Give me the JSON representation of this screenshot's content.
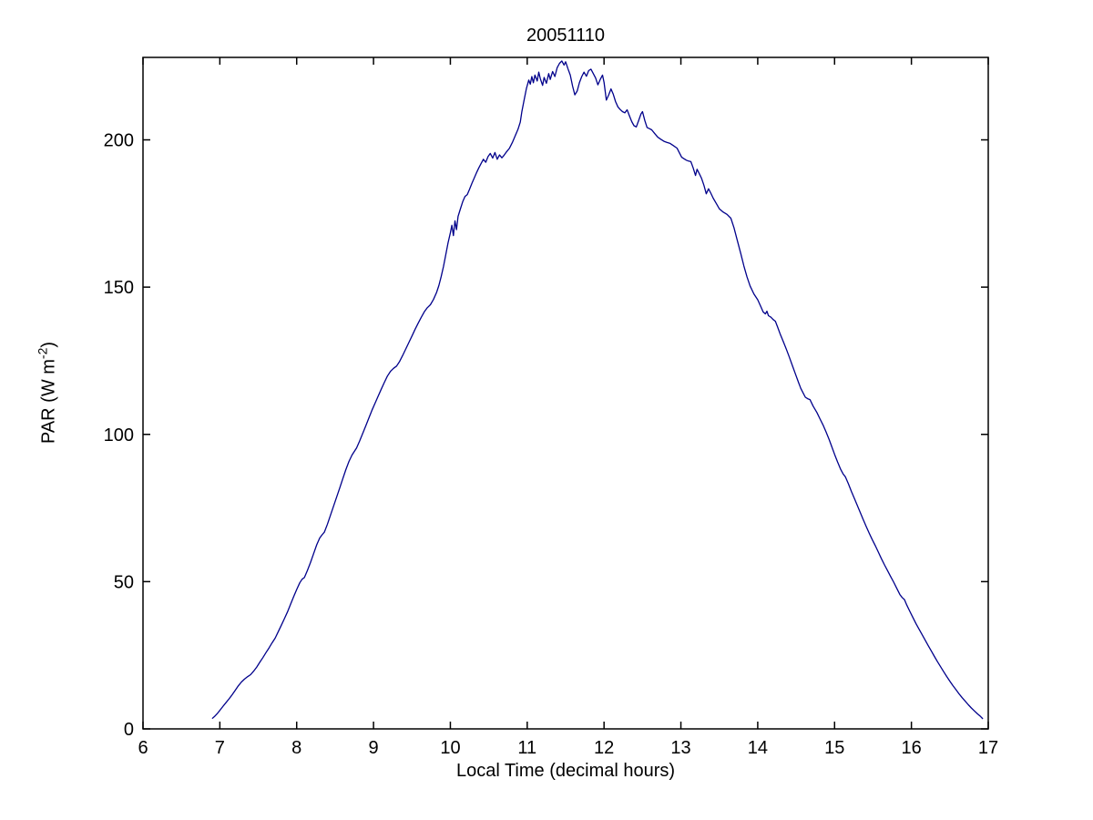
{
  "chart_data": {
    "type": "line",
    "title": "20051110",
    "xlabel": "Local Time (decimal hours)",
    "ylabel": "PAR (W m-2)",
    "ylabel_prefix": "PAR (W m",
    "ylabel_sup": "-2",
    "ylabel_suffix": ")",
    "xlim": [
      6,
      17
    ],
    "ylim": [
      0,
      228
    ],
    "xticks": [
      6,
      7,
      8,
      9,
      10,
      11,
      12,
      13,
      14,
      15,
      16,
      17
    ],
    "yticks": [
      0,
      50,
      100,
      150,
      200
    ],
    "grid": false,
    "legend_position": "none",
    "line_color": "#00008B",
    "axis_color": "#000000",
    "background_color": "#FFFFFF",
    "series": [
      {
        "name": "PAR",
        "points": [
          [
            6.9,
            3.5
          ],
          [
            6.93,
            4.2
          ],
          [
            6.97,
            5.3
          ],
          [
            7.0,
            6.3
          ],
          [
            7.04,
            7.6
          ],
          [
            7.08,
            8.9
          ],
          [
            7.12,
            10.2
          ],
          [
            7.16,
            11.6
          ],
          [
            7.2,
            13.1
          ],
          [
            7.24,
            14.6
          ],
          [
            7.28,
            15.9
          ],
          [
            7.32,
            16.9
          ],
          [
            7.36,
            17.7
          ],
          [
            7.4,
            18.4
          ],
          [
            7.44,
            19.6
          ],
          [
            7.48,
            21.0
          ],
          [
            7.52,
            22.6
          ],
          [
            7.56,
            24.2
          ],
          [
            7.6,
            25.9
          ],
          [
            7.64,
            27.5
          ],
          [
            7.68,
            29.2
          ],
          [
            7.72,
            30.8
          ],
          [
            7.76,
            33.0
          ],
          [
            7.8,
            35.2
          ],
          [
            7.84,
            37.4
          ],
          [
            7.88,
            39.7
          ],
          [
            7.92,
            42.3
          ],
          [
            7.96,
            44.9
          ],
          [
            8.0,
            47.3
          ],
          [
            8.04,
            49.6
          ],
          [
            8.07,
            50.8
          ],
          [
            8.1,
            51.4
          ],
          [
            8.14,
            53.8
          ],
          [
            8.18,
            56.5
          ],
          [
            8.22,
            59.5
          ],
          [
            8.26,
            62.5
          ],
          [
            8.3,
            64.8
          ],
          [
            8.33,
            65.9
          ],
          [
            8.36,
            66.8
          ],
          [
            8.4,
            69.5
          ],
          [
            8.44,
            72.5
          ],
          [
            8.48,
            75.6
          ],
          [
            8.52,
            78.7
          ],
          [
            8.56,
            81.8
          ],
          [
            8.6,
            84.9
          ],
          [
            8.64,
            88.0
          ],
          [
            8.68,
            90.8
          ],
          [
            8.72,
            93.0
          ],
          [
            8.75,
            94.2
          ],
          [
            8.78,
            95.4
          ],
          [
            8.82,
            97.8
          ],
          [
            8.86,
            100.4
          ],
          [
            8.9,
            103.0
          ],
          [
            8.94,
            105.6
          ],
          [
            8.98,
            108.2
          ],
          [
            9.02,
            110.6
          ],
          [
            9.06,
            113.0
          ],
          [
            9.1,
            115.3
          ],
          [
            9.14,
            117.6
          ],
          [
            9.18,
            119.8
          ],
          [
            9.22,
            121.4
          ],
          [
            9.26,
            122.4
          ],
          [
            9.3,
            123.2
          ],
          [
            9.34,
            124.8
          ],
          [
            9.38,
            126.8
          ],
          [
            9.42,
            129.0
          ],
          [
            9.46,
            131.2
          ],
          [
            9.5,
            133.4
          ],
          [
            9.54,
            135.6
          ],
          [
            9.58,
            137.7
          ],
          [
            9.62,
            139.7
          ],
          [
            9.66,
            141.6
          ],
          [
            9.7,
            143.0
          ],
          [
            9.74,
            144.0
          ],
          [
            9.78,
            145.8
          ],
          [
            9.82,
            148.2
          ],
          [
            9.85,
            150.5
          ],
          [
            9.88,
            153.5
          ],
          [
            9.91,
            157.0
          ],
          [
            9.94,
            161.0
          ],
          [
            9.97,
            165.0
          ],
          [
            10.0,
            168.5
          ],
          [
            10.02,
            171.0
          ],
          [
            10.04,
            167.5
          ],
          [
            10.06,
            172.5
          ],
          [
            10.08,
            169.5
          ],
          [
            10.1,
            174.0
          ],
          [
            10.13,
            176.5
          ],
          [
            10.16,
            179.0
          ],
          [
            10.19,
            180.8
          ],
          [
            10.22,
            181.4
          ],
          [
            10.25,
            183.2
          ],
          [
            10.28,
            185.2
          ],
          [
            10.31,
            187.0
          ],
          [
            10.34,
            188.8
          ],
          [
            10.37,
            190.5
          ],
          [
            10.4,
            192.0
          ],
          [
            10.43,
            193.4
          ],
          [
            10.46,
            192.4
          ],
          [
            10.49,
            194.3
          ],
          [
            10.52,
            195.4
          ],
          [
            10.55,
            193.8
          ],
          [
            10.58,
            195.7
          ],
          [
            10.61,
            193.4
          ],
          [
            10.64,
            194.9
          ],
          [
            10.67,
            193.9
          ],
          [
            10.7,
            194.8
          ],
          [
            10.73,
            195.9
          ],
          [
            10.77,
            197.2
          ],
          [
            10.81,
            199.3
          ],
          [
            10.85,
            201.8
          ],
          [
            10.88,
            203.6
          ],
          [
            10.91,
            206.0
          ],
          [
            10.93,
            209.5
          ],
          [
            10.96,
            213.5
          ],
          [
            10.99,
            217.5
          ],
          [
            11.02,
            220.3
          ],
          [
            11.04,
            218.9
          ],
          [
            11.06,
            221.5
          ],
          [
            11.08,
            219.4
          ],
          [
            11.1,
            222.0
          ],
          [
            11.13,
            220.0
          ],
          [
            11.15,
            223.0
          ],
          [
            11.17,
            220.8
          ],
          [
            11.2,
            218.5
          ],
          [
            11.22,
            221.2
          ],
          [
            11.25,
            219.2
          ],
          [
            11.28,
            222.5
          ],
          [
            11.3,
            220.5
          ],
          [
            11.33,
            223.2
          ],
          [
            11.36,
            221.5
          ],
          [
            11.39,
            224.5
          ],
          [
            11.42,
            226.0
          ],
          [
            11.45,
            226.8
          ],
          [
            11.48,
            225.4
          ],
          [
            11.5,
            226.5
          ],
          [
            11.53,
            224.2
          ],
          [
            11.56,
            222.0
          ],
          [
            11.59,
            218.3
          ],
          [
            11.62,
            215.3
          ],
          [
            11.65,
            216.6
          ],
          [
            11.68,
            219.5
          ],
          [
            11.71,
            221.5
          ],
          [
            11.74,
            223.0
          ],
          [
            11.77,
            221.6
          ],
          [
            11.8,
            223.5
          ],
          [
            11.83,
            224.0
          ],
          [
            11.86,
            222.5
          ],
          [
            11.89,
            221.0
          ],
          [
            11.92,
            218.7
          ],
          [
            11.95,
            220.5
          ],
          [
            11.98,
            222.0
          ],
          [
            12.0,
            219.5
          ],
          [
            12.03,
            213.5
          ],
          [
            12.06,
            215.2
          ],
          [
            12.09,
            217.3
          ],
          [
            12.12,
            215.5
          ],
          [
            12.15,
            213.0
          ],
          [
            12.18,
            211.2
          ],
          [
            12.21,
            210.3
          ],
          [
            12.24,
            209.6
          ],
          [
            12.27,
            209.2
          ],
          [
            12.3,
            210.2
          ],
          [
            12.33,
            208.2
          ],
          [
            12.36,
            206.2
          ],
          [
            12.39,
            204.8
          ],
          [
            12.42,
            204.4
          ],
          [
            12.45,
            206.5
          ],
          [
            12.48,
            208.8
          ],
          [
            12.5,
            209.6
          ],
          [
            12.53,
            206.6
          ],
          [
            12.56,
            204.2
          ],
          [
            12.59,
            203.8
          ],
          [
            12.62,
            203.4
          ],
          [
            12.66,
            202.1
          ],
          [
            12.7,
            200.9
          ],
          [
            12.74,
            200.2
          ],
          [
            12.78,
            199.5
          ],
          [
            12.82,
            199.1
          ],
          [
            12.86,
            198.8
          ],
          [
            12.9,
            198.1
          ],
          [
            12.95,
            197.2
          ],
          [
            12.98,
            195.6
          ],
          [
            13.01,
            194.1
          ],
          [
            13.04,
            193.6
          ],
          [
            13.07,
            193.1
          ],
          [
            13.1,
            192.8
          ],
          [
            13.13,
            192.6
          ],
          [
            13.16,
            190.5
          ],
          [
            13.19,
            187.9
          ],
          [
            13.21,
            190.0
          ],
          [
            13.24,
            188.5
          ],
          [
            13.27,
            186.9
          ],
          [
            13.3,
            184.5
          ],
          [
            13.33,
            181.7
          ],
          [
            13.36,
            183.4
          ],
          [
            13.39,
            181.9
          ],
          [
            13.42,
            180.2
          ],
          [
            13.46,
            178.4
          ],
          [
            13.5,
            176.6
          ],
          [
            13.55,
            175.5
          ],
          [
            13.6,
            174.7
          ],
          [
            13.65,
            173.4
          ],
          [
            13.69,
            170.2
          ],
          [
            13.73,
            166.3
          ],
          [
            13.78,
            161.4
          ],
          [
            13.82,
            157.2
          ],
          [
            13.86,
            153.5
          ],
          [
            13.9,
            150.4
          ],
          [
            13.95,
            147.7
          ],
          [
            14.0,
            145.7
          ],
          [
            14.04,
            143.4
          ],
          [
            14.07,
            141.6
          ],
          [
            14.1,
            140.9
          ],
          [
            14.12,
            141.8
          ],
          [
            14.14,
            140.3
          ],
          [
            14.17,
            139.8
          ],
          [
            14.2,
            139.0
          ],
          [
            14.23,
            138.4
          ],
          [
            14.26,
            136.4
          ],
          [
            14.29,
            134.2
          ],
          [
            14.33,
            131.7
          ],
          [
            14.37,
            129.1
          ],
          [
            14.41,
            126.3
          ],
          [
            14.45,
            123.4
          ],
          [
            14.49,
            120.6
          ],
          [
            14.53,
            117.7
          ],
          [
            14.56,
            115.6
          ],
          [
            14.59,
            114.1
          ],
          [
            14.62,
            112.6
          ],
          [
            14.65,
            112.1
          ],
          [
            14.68,
            111.8
          ],
          [
            14.72,
            109.6
          ],
          [
            14.77,
            107.4
          ],
          [
            14.81,
            105.3
          ],
          [
            14.85,
            103.2
          ],
          [
            14.89,
            100.8
          ],
          [
            14.93,
            98.2
          ],
          [
            14.97,
            95.4
          ],
          [
            15.0,
            93.2
          ],
          [
            15.04,
            90.6
          ],
          [
            15.08,
            88.1
          ],
          [
            15.11,
            86.6
          ],
          [
            15.14,
            85.6
          ],
          [
            15.18,
            83.2
          ],
          [
            15.22,
            80.6
          ],
          [
            15.26,
            78.1
          ],
          [
            15.3,
            75.6
          ],
          [
            15.34,
            73.1
          ],
          [
            15.37,
            71.2
          ],
          [
            15.41,
            68.8
          ],
          [
            15.45,
            66.5
          ],
          [
            15.49,
            64.3
          ],
          [
            15.53,
            62.2
          ],
          [
            15.57,
            60.0
          ],
          [
            15.61,
            57.8
          ],
          [
            15.65,
            55.7
          ],
          [
            15.69,
            53.7
          ],
          [
            15.73,
            51.7
          ],
          [
            15.77,
            49.8
          ],
          [
            15.81,
            47.7
          ],
          [
            15.85,
            45.6
          ],
          [
            15.88,
            44.6
          ],
          [
            15.91,
            43.9
          ],
          [
            15.94,
            42.0
          ],
          [
            15.98,
            39.9
          ],
          [
            16.02,
            37.8
          ],
          [
            16.06,
            35.7
          ],
          [
            16.1,
            33.8
          ],
          [
            16.14,
            32.0
          ],
          [
            16.18,
            30.1
          ],
          [
            16.22,
            28.2
          ],
          [
            16.26,
            26.4
          ],
          [
            16.3,
            24.6
          ],
          [
            16.34,
            22.8
          ],
          [
            16.38,
            21.1
          ],
          [
            16.42,
            19.4
          ],
          [
            16.46,
            17.8
          ],
          [
            16.5,
            16.2
          ],
          [
            16.54,
            14.7
          ],
          [
            16.58,
            13.3
          ],
          [
            16.62,
            11.9
          ],
          [
            16.66,
            10.6
          ],
          [
            16.7,
            9.4
          ],
          [
            16.74,
            8.2
          ],
          [
            16.78,
            7.1
          ],
          [
            16.82,
            6.1
          ],
          [
            16.86,
            5.1
          ],
          [
            16.9,
            4.2
          ],
          [
            16.93,
            3.4
          ]
        ]
      }
    ]
  }
}
